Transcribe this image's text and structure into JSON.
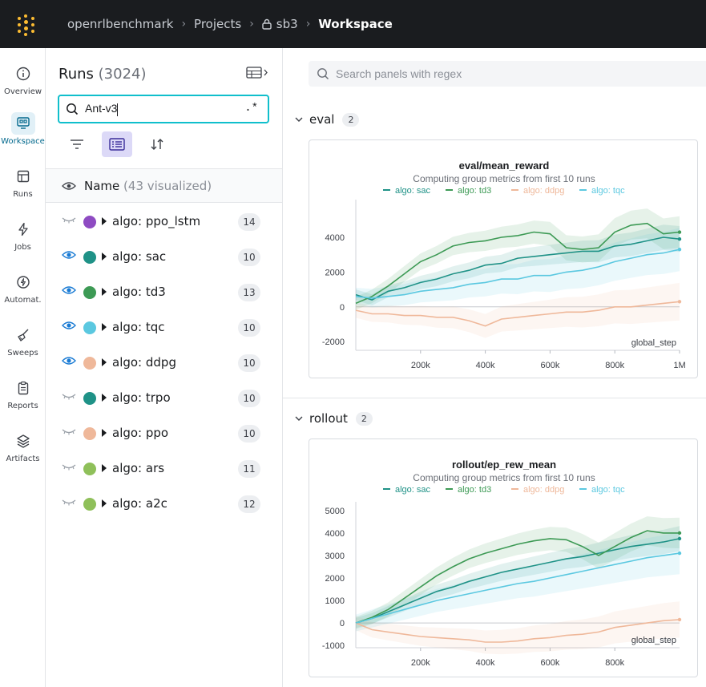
{
  "breadcrumb": {
    "entity": "openrlbenchmark",
    "projects": "Projects",
    "project": "sb3",
    "current": "Workspace"
  },
  "nav": [
    {
      "label": "Overview",
      "icon": "info-icon"
    },
    {
      "label": "Workspace",
      "icon": "workspace-icon"
    },
    {
      "label": "Runs",
      "icon": "table-icon"
    },
    {
      "label": "Jobs",
      "icon": "lightning-icon"
    },
    {
      "label": "Automat.",
      "icon": "automation-icon"
    },
    {
      "label": "Sweeps",
      "icon": "broom-icon"
    },
    {
      "label": "Reports",
      "icon": "clipboard-icon"
    },
    {
      "label": "Artifacts",
      "icon": "layers-icon"
    }
  ],
  "runs": {
    "title": "Runs",
    "count": "(3024)",
    "search_value": "Ant-v3",
    "regex_label": ".*",
    "name_header": "Name",
    "visualized": "(43 visualized)",
    "groups": [
      {
        "name": "algo: ppo_lstm",
        "count": "14",
        "color": "#8e4bc2",
        "visible": false
      },
      {
        "name": "algo: sac",
        "count": "10",
        "color": "#1f9287",
        "visible": true
      },
      {
        "name": "algo: td3",
        "count": "13",
        "color": "#3d9a55",
        "visible": true
      },
      {
        "name": "algo: tqc",
        "count": "10",
        "color": "#5bc8e0",
        "visible": true
      },
      {
        "name": "algo: ddpg",
        "count": "10",
        "color": "#efb89a",
        "visible": true
      },
      {
        "name": "algo: trpo",
        "count": "10",
        "color": "#1f9287",
        "visible": false
      },
      {
        "name": "algo: ppo",
        "count": "10",
        "color": "#efb89a",
        "visible": false
      },
      {
        "name": "algo: ars",
        "count": "11",
        "color": "#8fc05a",
        "visible": false
      },
      {
        "name": "algo: a2c",
        "count": "12",
        "color": "#8fc05a",
        "visible": false
      }
    ]
  },
  "main": {
    "search_placeholder": "Search panels with regex",
    "sections": [
      {
        "title": "eval",
        "count": "2"
      },
      {
        "title": "rollout",
        "count": "2"
      }
    ]
  },
  "colors": {
    "sac": "#1f9287",
    "td3": "#3d9a55",
    "ddpg": "#efb89a",
    "tqc": "#5bc8e0"
  },
  "chart_data": [
    {
      "type": "line",
      "title": "eval/mean_reward",
      "subtitle": "Computing group metrics from first 10 runs",
      "xlabel": "global_step",
      "ylabel": "",
      "xlim": [
        0,
        1000000
      ],
      "ylim": [
        -2500,
        5800
      ],
      "xticks": [
        "200k",
        "400k",
        "600k",
        "800k",
        "1M"
      ],
      "yticks": [
        "-2000",
        "0",
        "2000",
        "4000"
      ],
      "legend": "top",
      "x": [
        0,
        50000,
        100000,
        150000,
        200000,
        250000,
        300000,
        350000,
        400000,
        450000,
        500000,
        550000,
        600000,
        650000,
        700000,
        750000,
        800000,
        850000,
        900000,
        950000,
        1000000
      ],
      "series": [
        {
          "name": "algo: sac",
          "color": "#1f9287",
          "values": [
            700,
            400,
            900,
            1100,
            1400,
            1600,
            1900,
            2100,
            2400,
            2500,
            2800,
            2900,
            3000,
            3100,
            3200,
            3200,
            3500,
            3600,
            3800,
            4000,
            3900
          ]
        },
        {
          "name": "algo: td3",
          "color": "#3d9a55",
          "values": [
            200,
            600,
            1200,
            1900,
            2600,
            3000,
            3500,
            3700,
            3800,
            4000,
            4100,
            4300,
            4200,
            3400,
            3300,
            3400,
            4300,
            4700,
            4800,
            4200,
            4300
          ]
        },
        {
          "name": "algo: ddpg",
          "color": "#efb89a",
          "values": [
            -200,
            -400,
            -400,
            -500,
            -500,
            -600,
            -600,
            -800,
            -1100,
            -700,
            -600,
            -500,
            -400,
            -300,
            -300,
            -200,
            0,
            0,
            100,
            200,
            300
          ]
        },
        {
          "name": "algo: tqc",
          "color": "#5bc8e0",
          "values": [
            600,
            500,
            600,
            700,
            900,
            1000,
            1100,
            1300,
            1400,
            1600,
            1600,
            1800,
            1800,
            2000,
            2100,
            2300,
            2600,
            2800,
            3000,
            3100,
            3300
          ]
        }
      ]
    },
    {
      "type": "line",
      "title": "rollout/ep_rew_mean",
      "subtitle": "Computing group metrics from first 10 runs",
      "xlabel": "global_step",
      "ylabel": "",
      "xlim": [
        0,
        1000000
      ],
      "ylim": [
        -1100,
        5100
      ],
      "xticks": [
        "200k",
        "400k",
        "600k",
        "800k"
      ],
      "yticks": [
        "-1000",
        "0",
        "1000",
        "2000",
        "3000",
        "4000",
        "5000"
      ],
      "legend": "top",
      "x": [
        0,
        50000,
        100000,
        150000,
        200000,
        250000,
        300000,
        350000,
        400000,
        450000,
        500000,
        550000,
        600000,
        650000,
        700000,
        750000,
        800000,
        850000,
        900000,
        950000,
        1000000
      ],
      "series": [
        {
          "name": "algo: sac",
          "color": "#1f9287",
          "values": [
            0,
            200,
            500,
            800,
            1100,
            1400,
            1600,
            1850,
            2050,
            2250,
            2400,
            2550,
            2700,
            2850,
            2950,
            3100,
            3250,
            3400,
            3500,
            3600,
            3750
          ]
        },
        {
          "name": "algo: td3",
          "color": "#3d9a55",
          "values": [
            0,
            250,
            600,
            1100,
            1600,
            2100,
            2500,
            2850,
            3100,
            3300,
            3500,
            3650,
            3750,
            3700,
            3400,
            3000,
            3400,
            3800,
            4100,
            4000,
            4000
          ]
        },
        {
          "name": "algo: ddpg",
          "color": "#efb89a",
          "values": [
            0,
            -300,
            -400,
            -500,
            -600,
            -650,
            -700,
            -750,
            -850,
            -850,
            -800,
            -700,
            -650,
            -550,
            -500,
            -400,
            -200,
            -100,
            0,
            100,
            150
          ]
        },
        {
          "name": "algo: tqc",
          "color": "#5bc8e0",
          "values": [
            0,
            200,
            400,
            600,
            800,
            1000,
            1150,
            1300,
            1450,
            1600,
            1750,
            1850,
            2000,
            2150,
            2300,
            2450,
            2600,
            2750,
            2900,
            3000,
            3100
          ]
        }
      ]
    }
  ]
}
